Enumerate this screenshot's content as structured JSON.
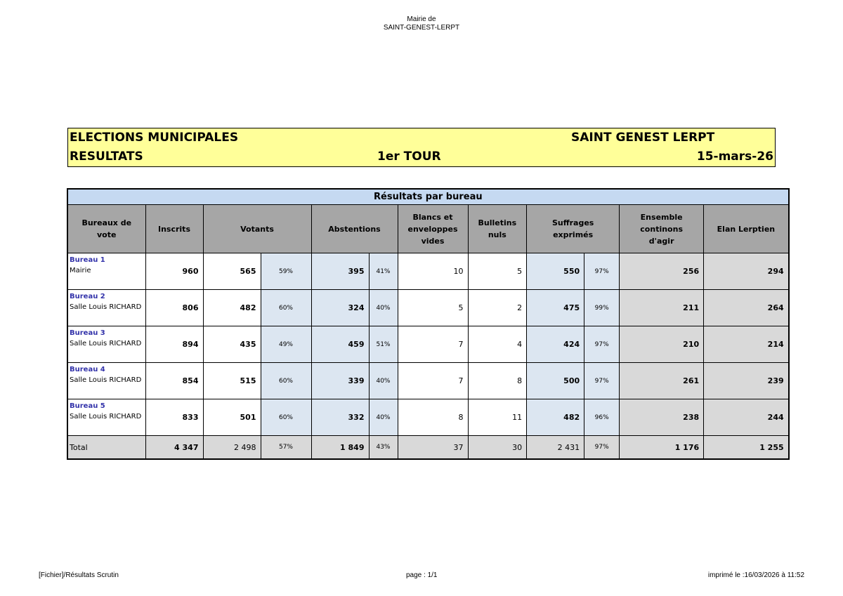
{
  "page_header": {
    "line1": "Mairie de",
    "line2": "SAINT-GENEST-LERPT"
  },
  "banner": {
    "title": "ELECTIONS MUNICIPALES",
    "town": "SAINT GENEST LERPT",
    "subtitle": "RESULTATS",
    "round": "1er TOUR",
    "date": "15-mars-26"
  },
  "table": {
    "title": "Résultats par bureau",
    "headers": [
      "Bureaux de vote",
      "Inscrits",
      "Votants",
      "Abstentions",
      "Blancs et enveloppes vides",
      "Bulletins nuls",
      "Suffrages exprimés",
      "Ensemble continons d'agir",
      "Elan Lerptien"
    ],
    "rows": [
      {
        "bureau": "Bureau 1",
        "lieu": "Mairie",
        "inscrits": "960",
        "votants": "565",
        "votants_pct": "59%",
        "abstentions": "395",
        "abstentions_pct": "41%",
        "blancs": "10",
        "nuls": "5",
        "exprimes": "550",
        "exprimes_pct": "97%",
        "ensemble": "256",
        "elan": "294"
      },
      {
        "bureau": "Bureau 2",
        "lieu": "Salle Louis RICHARD",
        "inscrits": "806",
        "votants": "482",
        "votants_pct": "60%",
        "abstentions": "324",
        "abstentions_pct": "40%",
        "blancs": "5",
        "nuls": "2",
        "exprimes": "475",
        "exprimes_pct": "99%",
        "ensemble": "211",
        "elan": "264"
      },
      {
        "bureau": "Bureau 3",
        "lieu": "Salle Louis RICHARD",
        "inscrits": "894",
        "votants": "435",
        "votants_pct": "49%",
        "abstentions": "459",
        "abstentions_pct": "51%",
        "blancs": "7",
        "nuls": "4",
        "exprimes": "424",
        "exprimes_pct": "97%",
        "ensemble": "210",
        "elan": "214"
      },
      {
        "bureau": "Bureau 4",
        "lieu": "Salle Louis RICHARD",
        "inscrits": "854",
        "votants": "515",
        "votants_pct": "60%",
        "abstentions": "339",
        "abstentions_pct": "40%",
        "blancs": "7",
        "nuls": "8",
        "exprimes": "500",
        "exprimes_pct": "97%",
        "ensemble": "261",
        "elan": "239"
      },
      {
        "bureau": "Bureau 5",
        "lieu": "Salle Louis RICHARD",
        "inscrits": "833",
        "votants": "501",
        "votants_pct": "60%",
        "abstentions": "332",
        "abstentions_pct": "40%",
        "blancs": "8",
        "nuls": "11",
        "exprimes": "482",
        "exprimes_pct": "96%",
        "ensemble": "238",
        "elan": "244"
      }
    ],
    "total": {
      "label": "Total",
      "inscrits": "4 347",
      "votants": "2 498",
      "votants_pct": "57%",
      "abstentions": "1 849",
      "abstentions_pct": "43%",
      "blancs": "37",
      "nuls": "30",
      "exprimes": "2 431",
      "exprimes_pct": "97%",
      "ensemble": "1 176",
      "elan": "1 255"
    }
  },
  "footer": {
    "left": "[Fichier]/Résultats Scrutin",
    "center": "page : 1/1",
    "right": "imprimé le :16/03/2026 à 11:52"
  }
}
